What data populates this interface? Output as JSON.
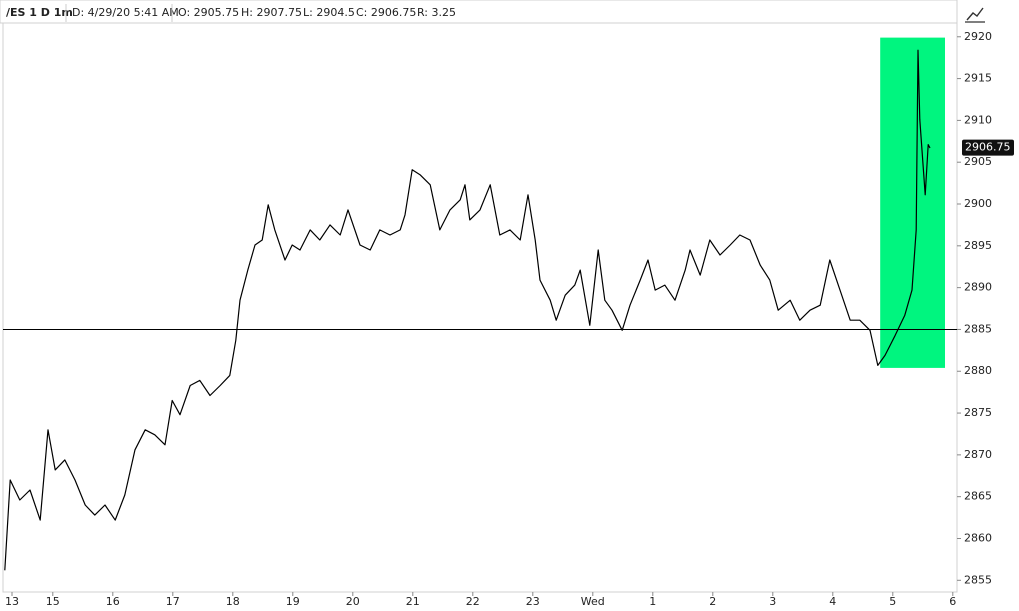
{
  "header": {
    "symbol": "/ES 1 D 1m",
    "date": "D: 4/29/20 5:41 AM",
    "open": "O: 2905.75",
    "high": "H: 2907.75",
    "low": "L: 2904.5",
    "close": "C: 2906.75",
    "range": "R: 3.25"
  },
  "chart_data": {
    "type": "line",
    "x": [
      0.03,
      0.12,
      0.28,
      0.45,
      0.62,
      0.75,
      0.87,
      1.03,
      1.2,
      1.37,
      1.53,
      1.7,
      1.87,
      2.03,
      2.2,
      2.37,
      2.53,
      2.7,
      2.82,
      2.95,
      3.12,
      3.28,
      3.45,
      3.62,
      3.78,
      3.88,
      3.95,
      4.08,
      4.2,
      4.32,
      4.42,
      4.53,
      4.7,
      4.82,
      4.95,
      5.12,
      5.28,
      5.45,
      5.62,
      5.75,
      5.95,
      6.12,
      6.28,
      6.45,
      6.62,
      6.7,
      6.82,
      6.95,
      7.12,
      7.28,
      7.45,
      7.62,
      7.7,
      7.78,
      7.95,
      8.12,
      8.28,
      8.45,
      8.62,
      8.75,
      8.87,
      8.95,
      9.12,
      9.22,
      9.37,
      9.53,
      9.62,
      9.78,
      9.92,
      10.03,
      10.15,
      10.32,
      10.45,
      10.62,
      10.75,
      10.87,
      11.03,
      11.2,
      11.37,
      11.45,
      11.62,
      11.78,
      11.95,
      12.12,
      12.28,
      12.45,
      12.62,
      12.78,
      12.92,
      13.12,
      13.28,
      13.45,
      13.62,
      13.78,
      13.95,
      14.12,
      14.28,
      14.45,
      14.58,
      14.7,
      14.87,
      15.03,
      15.15,
      15.22,
      15.25,
      15.28,
      15.37,
      15.42,
      15.45
    ],
    "series": [
      {
        "color": "#000000",
        "values": [
          2856.2,
          2867.0,
          2864.6,
          2865.8,
          2862.2,
          2873.0,
          2868.2,
          2869.4,
          2867.0,
          2864.0,
          2862.8,
          2864.0,
          2862.2,
          2865.2,
          2870.6,
          2873.0,
          2872.4,
          2871.2,
          2876.5,
          2874.8,
          2878.3,
          2878.9,
          2877.1,
          2878.3,
          2879.5,
          2883.7,
          2888.5,
          2892.1,
          2895.1,
          2895.7,
          2899.9,
          2896.9,
          2893.3,
          2895.1,
          2894.5,
          2896.9,
          2895.7,
          2897.5,
          2896.3,
          2899.3,
          2895.1,
          2894.5,
          2896.9,
          2896.3,
          2896.9,
          2898.7,
          2904.1,
          2903.5,
          2902.3,
          2896.9,
          2899.3,
          2900.5,
          2902.3,
          2898.1,
          2899.3,
          2902.3,
          2896.3,
          2896.9,
          2895.7,
          2901.1,
          2895.7,
          2890.9,
          2888.5,
          2886.1,
          2889.1,
          2890.3,
          2892.1,
          2885.5,
          2894.5,
          2888.5,
          2887.3,
          2884.9,
          2887.9,
          2890.9,
          2893.3,
          2889.7,
          2890.3,
          2888.5,
          2892.1,
          2894.5,
          2891.5,
          2895.7,
          2893.9,
          2895.1,
          2896.3,
          2895.7,
          2892.7,
          2890.9,
          2887.3,
          2888.5,
          2886.1,
          2887.3,
          2887.9,
          2893.3,
          2889.7,
          2886.1,
          2886.1,
          2884.9,
          2880.7,
          2881.9,
          2884.3,
          2886.7,
          2889.7,
          2896.9,
          2918.4,
          2910.1,
          2901.1,
          2907.1,
          2906.7
        ]
      }
    ],
    "xlim": [
      0,
      15.9
    ],
    "ylim": [
      2853.6,
      2923.8
    ],
    "xticks": [
      {
        "value": 0.15,
        "label": "13"
      },
      {
        "value": 0.83,
        "label": "15"
      },
      {
        "value": 1.83,
        "label": "16"
      },
      {
        "value": 2.83,
        "label": "17"
      },
      {
        "value": 3.83,
        "label": "18"
      },
      {
        "value": 4.83,
        "label": "19"
      },
      {
        "value": 5.83,
        "label": "20"
      },
      {
        "value": 6.83,
        "label": "21"
      },
      {
        "value": 7.83,
        "label": "22"
      },
      {
        "value": 8.83,
        "label": "23"
      },
      {
        "value": 9.83,
        "label": "Wed"
      },
      {
        "value": 10.83,
        "label": "1"
      },
      {
        "value": 11.83,
        "label": "2"
      },
      {
        "value": 12.83,
        "label": "3"
      },
      {
        "value": 13.83,
        "label": "4"
      },
      {
        "value": 14.83,
        "label": "5"
      },
      {
        "value": 15.83,
        "label": "6"
      }
    ],
    "yticks": [
      2855,
      2860,
      2865,
      2870,
      2875,
      2880,
      2885,
      2890,
      2895,
      2900,
      2905,
      2910,
      2915,
      2920
    ],
    "reference_line": 2885.0,
    "highlight": {
      "x": [
        14.62,
        15.7
      ],
      "y": [
        2880.4,
        2919.9
      ],
      "color": "#00f57f"
    },
    "last_price": 2906.75
  }
}
